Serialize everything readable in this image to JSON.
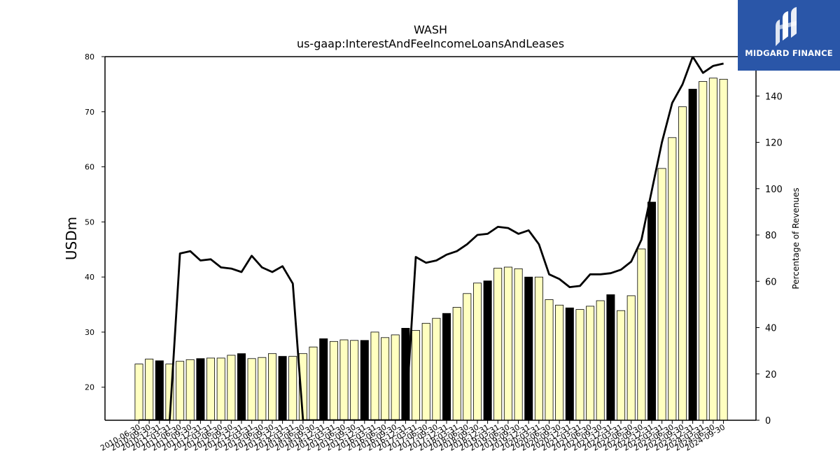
{
  "chart_data": {
    "type": "bar",
    "title": "WASH",
    "subtitle": "us-gaap:InterestAndFeeIncomeLoansAndLeases",
    "ylabel": "USDm",
    "y2label": "Percentage of Revenues",
    "ylim": [
      14,
      80
    ],
    "y2lim": [
      0,
      157
    ],
    "yticks": [
      20,
      30,
      40,
      50,
      60,
      70,
      80
    ],
    "y2ticks": [
      0,
      20,
      40,
      60,
      80,
      100,
      120,
      140
    ],
    "categories": [
      "2010-06-30",
      "2010-09-30",
      "2010-12-31",
      "2011-03-31",
      "2011-06-30",
      "2011-09-30",
      "2011-12-31",
      "2012-03-31",
      "2012-06-30",
      "2012-09-30",
      "2012-12-31",
      "2013-03-31",
      "2013-06-30",
      "2013-09-30",
      "2013-12-31",
      "2014-03-31",
      "2014-06-30",
      "2014-09-30",
      "2014-12-31",
      "2015-03-31",
      "2015-06-30",
      "2015-09-30",
      "2015-12-31",
      "2016-03-31",
      "2016-06-30",
      "2016-09-30",
      "2016-12-31",
      "2017-03-31",
      "2017-06-30",
      "2017-09-30",
      "2017-12-31",
      "2018-03-31",
      "2018-06-30",
      "2018-09-30",
      "2018-12-31",
      "2019-03-31",
      "2019-06-30",
      "2019-09-30",
      "2019-12-31",
      "2020-03-31",
      "2020-06-30",
      "2020-09-30",
      "2020-12-31",
      "2021-03-31",
      "2021-06-30",
      "2021-09-30",
      "2021-12-31",
      "2022-03-31",
      "2022-06-30",
      "2022-09-30",
      "2022-12-31",
      "2023-03-31",
      "2023-06-30",
      "2023-09-30",
      "2023-12-31",
      "2024-03-31",
      "2024-06-30",
      "2024-09-30"
    ],
    "series": [
      {
        "type": "bar",
        "values": [
          24.2,
          25.1,
          24.8,
          24.2,
          24.7,
          25.0,
          25.2,
          25.3,
          25.3,
          25.8,
          26.1,
          25.2,
          25.4,
          26.1,
          25.6,
          25.6,
          26.1,
          27.3,
          28.8,
          28.3,
          28.6,
          28.5,
          28.5,
          30.0,
          29.0,
          29.5,
          30.7,
          30.3,
          31.6,
          32.5,
          33.4,
          34.5,
          37.0,
          38.9,
          39.3,
          41.6,
          41.8,
          41.5,
          40.0,
          40.0,
          35.9,
          34.9,
          34.4,
          34.1,
          34.7,
          35.7,
          36.8,
          33.9,
          36.6,
          45.1,
          53.6,
          59.7,
          65.3,
          70.9,
          74.1,
          75.5,
          76.1,
          75.9
        ]
      },
      {
        "type": "line",
        "values": [
          0,
          0,
          0,
          0,
          72,
          73,
          69,
          69.5,
          66,
          65.5,
          64,
          71,
          66,
          64,
          66.5,
          59,
          0,
          0,
          0,
          0,
          0,
          0,
          0,
          0,
          0,
          0,
          0,
          70.5,
          68,
          69,
          71.5,
          73,
          76,
          80,
          80.5,
          83.5,
          83,
          80.5,
          82,
          76,
          63,
          61,
          57.5,
          58,
          63,
          63,
          63.5,
          65,
          68.5,
          78,
          99,
          120,
          137,
          145,
          157,
          150,
          153,
          154
        ]
      }
    ],
    "annual_indices": [
      2,
      6,
      10,
      14,
      18,
      22,
      26,
      30,
      34,
      38,
      42,
      46,
      50,
      54
    ],
    "colors": {
      "bar_fill": "#ffffc0",
      "bar_annual_fill": "#000000",
      "bar_edge": "#000000",
      "line": "#000000"
    }
  },
  "logo": {
    "text": "MIDGARD FINANCE",
    "icon": "midgard-logo-icon",
    "background": "#2a56a8"
  }
}
